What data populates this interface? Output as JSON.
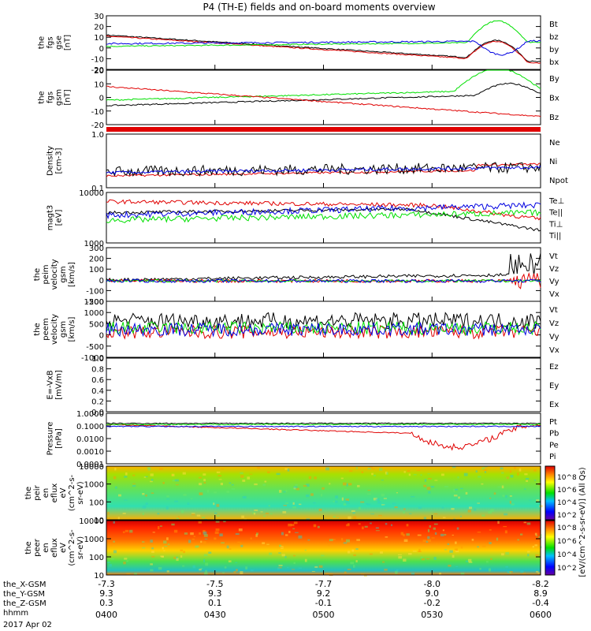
{
  "title": "P4 (TH-E) fields and on-board moments overview",
  "date_label": "2017 Apr 02",
  "colors": {
    "black": "#000000",
    "red": "#e00000",
    "green": "#00e000",
    "blue": "#0000e0"
  },
  "chart_data": [
    {
      "type": "line",
      "id": "fgs_gse",
      "ylabel": [
        "the",
        "fgs",
        "gse",
        "[nT]"
      ],
      "ylim": [
        -20,
        30
      ],
      "yticks": [
        "30",
        "20",
        "10",
        "0",
        "-10",
        "-20"
      ],
      "series": [
        {
          "name": "Bt",
          "color": "#000000"
        },
        {
          "name": "bz",
          "color": "#e00000"
        },
        {
          "name": "by",
          "color": "#00e000"
        },
        {
          "name": "bx",
          "color": "#0000e0"
        }
      ]
    },
    {
      "type": "line",
      "id": "fgs_gsm",
      "ylabel": [
        "the",
        "fgs",
        "gsm",
        "[nT]"
      ],
      "ylim": [
        -20,
        20
      ],
      "yticks": [
        "20",
        "10",
        "0",
        "-10",
        "-20"
      ],
      "series": [
        {
          "name": "By",
          "color": "#00e000"
        },
        {
          "name": "Bx",
          "color": "#000000"
        },
        {
          "name": "Bz",
          "color": "#e00000"
        }
      ]
    },
    {
      "type": "line",
      "id": "density",
      "ylabel": [
        "Density",
        "[cm-3]"
      ],
      "yscale": "log",
      "ylim": [
        0.1,
        1.0
      ],
      "yticks": [
        "1.0",
        "0.1"
      ],
      "series": [
        {
          "name": "Ne",
          "color": "#e00000"
        },
        {
          "name": "Ni",
          "color": "#000000"
        },
        {
          "name": "Npot",
          "color": "#0000e0"
        }
      ]
    },
    {
      "type": "line",
      "id": "temperature",
      "ylabel": [
        "magt3",
        "[eV]"
      ],
      "yscale": "log",
      "ylim": [
        1000,
        10000
      ],
      "yticks": [
        "10000",
        "1000"
      ],
      "series": [
        {
          "name": "Te⊥",
          "color": "#e00000"
        },
        {
          "name": "Te||",
          "color": "#000000"
        },
        {
          "name": "Ti⊥",
          "color": "#0000e0"
        },
        {
          "name": "Ti||",
          "color": "#00e000"
        }
      ]
    },
    {
      "type": "line",
      "id": "peim_velocity",
      "ylabel": [
        "the",
        "peim",
        "velocity",
        "gsm",
        "[km/s]"
      ],
      "ylim": [
        -200,
        300
      ],
      "yticks": [
        "300",
        "200",
        "100",
        "0",
        "-100",
        "-200"
      ],
      "series": [
        {
          "name": "Vt",
          "color": "#000000"
        },
        {
          "name": "Vz",
          "color": "#e00000"
        },
        {
          "name": "Vy",
          "color": "#00e000"
        },
        {
          "name": "Vx",
          "color": "#0000e0"
        }
      ]
    },
    {
      "type": "line",
      "id": "peem_velocity",
      "ylabel": [
        "the",
        "peem",
        "velocity",
        "gsm",
        "[km/s]"
      ],
      "ylim": [
        -1500,
        1500
      ],
      "yticks": [
        "1500",
        "1000",
        "500",
        "0",
        "-500",
        "-1000"
      ],
      "series": [
        {
          "name": "Vt",
          "color": "#000000"
        },
        {
          "name": "Vz",
          "color": "#e00000"
        },
        {
          "name": "Vy",
          "color": "#00e000"
        },
        {
          "name": "Vx",
          "color": "#0000e0"
        }
      ]
    },
    {
      "type": "line",
      "id": "efield",
      "ylabel": [
        "E=-VxB",
        "[mV/m]"
      ],
      "ylim": [
        0.0,
        1.0
      ],
      "yticks": [
        "1.0",
        "0.8",
        "0.6",
        "0.4",
        "0.2",
        "0.0"
      ],
      "series": [
        {
          "name": "Ez",
          "color": "#e00000"
        },
        {
          "name": "Ey",
          "color": "#00e000"
        },
        {
          "name": "Ex",
          "color": "#0000e0"
        }
      ]
    },
    {
      "type": "line",
      "id": "pressure",
      "ylabel": [
        "Pressure",
        "[nPa]"
      ],
      "yscale": "log",
      "ylim": [
        0.0001,
        1.0
      ],
      "yticks": [
        "1.0000",
        "0.1000",
        "0.0100",
        "0.0010",
        "0.0001"
      ],
      "series": [
        {
          "name": "Pt",
          "color": "#000000"
        },
        {
          "name": "Pb",
          "color": "#e00000"
        },
        {
          "name": "Pe",
          "color": "#00e000"
        },
        {
          "name": "Pi",
          "color": "#0000e0"
        }
      ]
    },
    {
      "type": "heatmap",
      "id": "peir_eflux",
      "ylabel": [
        "the",
        "peir",
        "en",
        "eflux",
        "eV",
        "(cm^2-s-",
        "sr-eV)"
      ],
      "yscale": "log",
      "ylim": [
        10,
        20000
      ],
      "yticks": [
        "10000",
        "1000",
        "100",
        "10"
      ]
    },
    {
      "type": "heatmap",
      "id": "peer_eflux",
      "ylabel": [
        "the",
        "peer",
        "en",
        "eflux",
        "eV",
        "(cm^2-s-",
        "sr-eV)"
      ],
      "yscale": "log",
      "ylim": [
        10,
        20000
      ],
      "yticks": [
        "10000",
        "1000",
        "100",
        "10"
      ]
    }
  ],
  "colorbar": {
    "label": "[eV/(cm^2-s-sr-eV)] (All Qs)",
    "ticks_top": [
      "10^8",
      "10^6",
      "10^4",
      "10^2"
    ],
    "ticks_bottom": [
      "10^8",
      "10^6",
      "10^4",
      "10^2"
    ]
  },
  "x_axis": {
    "row_labels": [
      "the_X-GSM",
      "the_Y-GSM",
      "the_Z-GSM",
      "hhmm"
    ],
    "ticks": [
      {
        "x_gsm": "-7.3",
        "y_gsm": "9.3",
        "z_gsm": "0.3",
        "hhmm": "0400"
      },
      {
        "x_gsm": "-7.5",
        "y_gsm": "9.3",
        "z_gsm": "0.1",
        "hhmm": "0430"
      },
      {
        "x_gsm": "-7.7",
        "y_gsm": "9.2",
        "z_gsm": "-0.1",
        "hhmm": "0500"
      },
      {
        "x_gsm": "-8.0",
        "y_gsm": "9.0",
        "z_gsm": "-0.2",
        "hhmm": "0530"
      },
      {
        "x_gsm": "-8.2",
        "y_gsm": "8.9",
        "z_gsm": "-0.4",
        "hhmm": "0600"
      }
    ]
  }
}
